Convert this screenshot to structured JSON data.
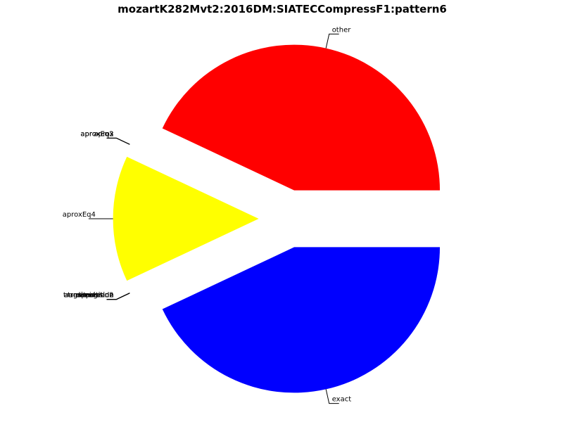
{
  "chart_data": {
    "type": "pie",
    "title": "mozartK282Mvt2:2016DM:SIATECCompressF1:pattern6",
    "slices": [
      {
        "label": "other",
        "value": 43,
        "color": "#ff0000"
      },
      {
        "label": "aprox",
        "value": 0,
        "color": "#00ff00"
      },
      {
        "label": "aproxEq2",
        "value": 0,
        "color": "#00ffff"
      },
      {
        "label": "aproxEq3",
        "value": 0,
        "color": "#ff00ff"
      },
      {
        "label": "aproxEq4",
        "value": 14,
        "color": "#ffff00"
      },
      {
        "label": "transposition",
        "value": 0,
        "color": "#000000"
      },
      {
        "label": "transposition2",
        "value": 0,
        "color": "#808080"
      },
      {
        "label": "inversion",
        "value": 0,
        "color": "#800000"
      },
      {
        "label": "retrograde",
        "value": 0,
        "color": "#008000"
      },
      {
        "label": "augmentation",
        "value": 0,
        "color": "#000080"
      },
      {
        "label": "diminution",
        "value": 0,
        "color": "#808000"
      },
      {
        "label": "exact",
        "value": 43,
        "color": "#0000ff"
      }
    ],
    "legend": "none"
  }
}
